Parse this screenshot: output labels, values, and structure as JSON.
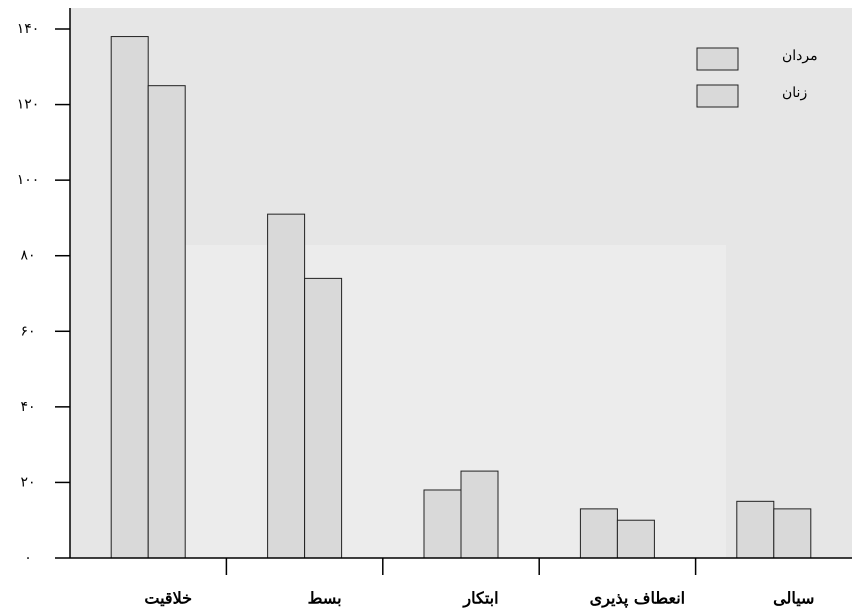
{
  "chart_data": {
    "type": "bar",
    "categories": [
      "خلاقیت",
      "بسط",
      "ابتکار",
      "انعطاف پذیری",
      "سیالی"
    ],
    "series": [
      {
        "name": "مردان",
        "color": "#d9d9d9",
        "values": [
          138,
          91,
          18,
          13,
          15
        ]
      },
      {
        "name": "زنان",
        "color": "#d9d9d9",
        "values": [
          125,
          74,
          23,
          10,
          13
        ]
      }
    ],
    "ylim": [
      0,
      140
    ],
    "yticks": [
      {
        "value": 0,
        "label": "۰"
      },
      {
        "value": 20,
        "label": "۲۰"
      },
      {
        "value": 40,
        "label": "۴۰"
      },
      {
        "value": 60,
        "label": "۶۰"
      },
      {
        "value": 80,
        "label": "۸۰"
      },
      {
        "value": 100,
        "label": "۱۰۰"
      },
      {
        "value": 120,
        "label": "۱۲۰"
      },
      {
        "value": 140,
        "label": "۱۴۰"
      }
    ],
    "legend": "top-right"
  }
}
